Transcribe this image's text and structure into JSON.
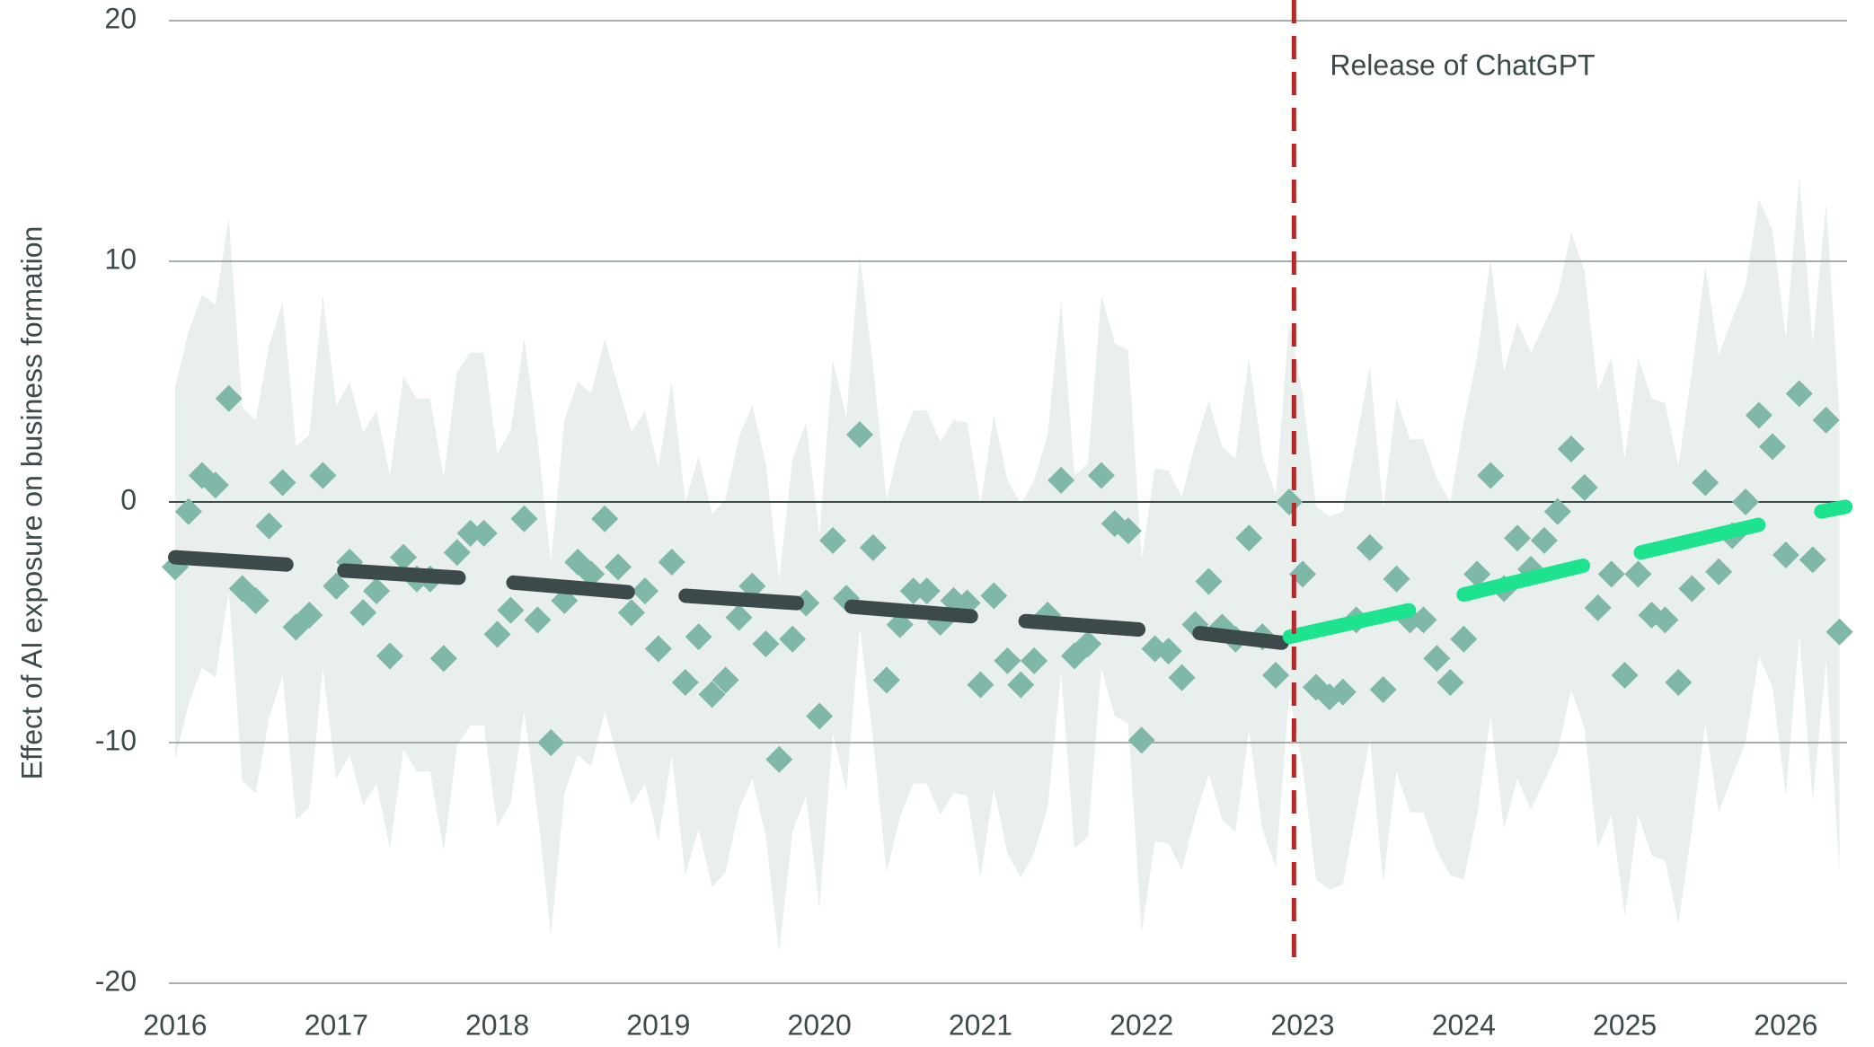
{
  "chart_data": {
    "type": "scatter",
    "y_label": "Effect of AI exposure on business formation",
    "xlim": [
      2016,
      2026.38
    ],
    "xticks": [
      2016,
      2017,
      2018,
      2019,
      2020,
      2021,
      2022,
      2023,
      2024,
      2025,
      2026
    ],
    "ylim": [
      -20,
      20
    ],
    "yticks": [
      -20,
      -10,
      0,
      10,
      20
    ],
    "grid": true,
    "x": [
      2016,
      2016.083,
      2016.167,
      2016.25,
      2016.333,
      2016.417,
      2016.5,
      2016.583,
      2016.667,
      2016.75,
      2016.833,
      2016.917,
      2017,
      2017.083,
      2017.167,
      2017.25,
      2017.333,
      2017.417,
      2017.5,
      2017.583,
      2017.667,
      2017.75,
      2017.833,
      2017.917,
      2018,
      2018.083,
      2018.167,
      2018.25,
      2018.333,
      2018.417,
      2018.5,
      2018.583,
      2018.667,
      2018.75,
      2018.833,
      2018.917,
      2019,
      2019.083,
      2019.167,
      2019.25,
      2019.333,
      2019.417,
      2019.5,
      2019.583,
      2019.667,
      2019.75,
      2019.833,
      2019.917,
      2020,
      2020.083,
      2020.167,
      2020.25,
      2020.333,
      2020.417,
      2020.5,
      2020.583,
      2020.667,
      2020.75,
      2020.833,
      2020.917,
      2021,
      2021.083,
      2021.167,
      2021.25,
      2021.333,
      2021.417,
      2021.5,
      2021.583,
      2021.667,
      2021.75,
      2021.833,
      2021.917,
      2022,
      2022.083,
      2022.167,
      2022.25,
      2022.333,
      2022.417,
      2022.5,
      2022.583,
      2022.667,
      2022.75,
      2022.833,
      2022.917,
      2023,
      2023.083,
      2023.167,
      2023.25,
      2023.333,
      2023.417,
      2023.5,
      2023.583,
      2023.667,
      2023.75,
      2023.833,
      2023.917,
      2024,
      2024.083,
      2024.167,
      2024.25,
      2024.333,
      2024.417,
      2024.5,
      2024.583,
      2024.667,
      2024.75,
      2024.833,
      2024.917,
      2025,
      2025.083,
      2025.167,
      2025.25,
      2025.333,
      2025.417,
      2025.5,
      2025.583,
      2025.667,
      2025.75,
      2025.833,
      2025.917,
      2026,
      2026.083,
      2026.167,
      2026.25,
      2026.333
    ],
    "points": {
      "color": "#7fb8a8",
      "values": [
        -2.7,
        -0.4,
        1.1,
        0.7,
        4.3,
        -3.6,
        -4.1,
        -1.0,
        0.8,
        -5.2,
        -4.7,
        1.1,
        -3.5,
        -2.5,
        -4.6,
        -3.7,
        -6.4,
        -2.3,
        -3.2,
        -3.2,
        -6.5,
        -2.1,
        -1.3,
        -1.3,
        -5.5,
        -4.5,
        -0.7,
        -4.9,
        -10.0,
        -4.1,
        -2.5,
        -3.0,
        -0.7,
        -2.7,
        -4.6,
        -3.7,
        -6.1,
        -2.5,
        -7.5,
        -5.6,
        -8.0,
        -7.4,
        -4.8,
        -3.5,
        -5.9,
        -10.7,
        -5.7,
        -4.2,
        -8.9,
        -1.6,
        -4.0,
        2.8,
        -1.9,
        -7.4,
        -5.1,
        -3.7,
        -3.7,
        -5.0,
        -4.1,
        -4.2,
        -7.6,
        -3.9,
        -6.6,
        -7.6,
        -6.6,
        -4.7,
        0.9,
        -6.4,
        -5.9,
        1.1,
        -0.9,
        -1.2,
        -9.9,
        -6.1,
        -6.2,
        -7.3,
        -5.1,
        -3.3,
        -5.2,
        -5.7,
        -1.5,
        -5.6,
        -7.2,
        0.0,
        -3.0,
        -7.7,
        -8.1,
        -7.9,
        -4.9,
        -1.9,
        -7.8,
        -3.2,
        -4.9,
        -4.9,
        -6.5,
        -7.5,
        -5.7,
        -3.0,
        1.1,
        -3.6,
        -1.5,
        -2.8,
        -1.6,
        -0.4,
        2.2,
        0.6,
        -4.4,
        -3.0,
        -7.2,
        -3.0,
        -4.7,
        -4.9,
        -7.5,
        -3.6,
        0.8,
        -2.9,
        -1.4,
        0.0,
        3.6,
        2.3,
        -2.2,
        4.5,
        -2.4,
        3.4,
        -5.4
      ]
    },
    "band": {
      "color": "#e9efed",
      "upper": [
        4.8,
        7.1,
        8.6,
        8.2,
        11.8,
        3.9,
        3.4,
        6.5,
        8.3,
        2.3,
        2.8,
        8.6,
        4.0,
        5.0,
        2.9,
        3.8,
        1.1,
        5.2,
        4.3,
        4.3,
        1.0,
        5.4,
        6.2,
        6.2,
        2.0,
        3.0,
        6.8,
        2.6,
        -2.5,
        3.4,
        5.0,
        4.5,
        6.8,
        4.8,
        2.9,
        3.8,
        1.4,
        5.0,
        0.0,
        1.9,
        -0.5,
        0.1,
        2.7,
        4.0,
        1.6,
        -3.2,
        1.8,
        3.3,
        -1.4,
        5.9,
        3.5,
        10.3,
        5.6,
        0.1,
        2.4,
        3.8,
        3.8,
        2.5,
        3.4,
        3.3,
        -0.1,
        3.6,
        0.9,
        -0.1,
        0.9,
        2.8,
        8.4,
        1.1,
        1.6,
        8.6,
        6.6,
        6.3,
        -2.4,
        1.4,
        1.3,
        0.2,
        2.4,
        4.2,
        2.3,
        1.8,
        6.0,
        1.9,
        0.3,
        7.5,
        4.5,
        -0.2,
        -0.6,
        -0.4,
        2.6,
        5.6,
        -0.3,
        4.3,
        2.6,
        2.6,
        1.0,
        0.0,
        3.3,
        6.0,
        10.1,
        5.4,
        7.5,
        6.2,
        7.4,
        8.6,
        11.2,
        9.6,
        4.6,
        6.0,
        1.8,
        6.0,
        4.3,
        4.1,
        1.5,
        5.4,
        9.8,
        6.1,
        7.6,
        9.0,
        12.6,
        11.3,
        6.8,
        13.5,
        6.6,
        12.4,
        3.6
      ],
      "lower": [
        -10.7,
        -8.4,
        -6.9,
        -7.3,
        -3.7,
        -11.6,
        -12.1,
        -9.0,
        -7.2,
        -13.2,
        -12.7,
        -6.9,
        -11.5,
        -10.5,
        -12.6,
        -11.7,
        -14.4,
        -10.3,
        -11.2,
        -11.2,
        -14.5,
        -10.1,
        -9.3,
        -9.3,
        -13.5,
        -12.5,
        -8.7,
        -12.9,
        -18.0,
        -12.1,
        -10.5,
        -11.0,
        -8.7,
        -10.7,
        -12.6,
        -11.7,
        -14.1,
        -10.5,
        -15.5,
        -13.6,
        -16.0,
        -15.4,
        -12.8,
        -11.5,
        -13.9,
        -18.7,
        -13.7,
        -12.2,
        -16.9,
        -9.6,
        -12.0,
        -5.2,
        -9.9,
        -15.4,
        -13.1,
        -11.7,
        -11.7,
        -13.0,
        -12.1,
        -12.2,
        -15.6,
        -11.9,
        -14.6,
        -15.6,
        -14.6,
        -12.7,
        -7.1,
        -14.4,
        -13.9,
        -6.9,
        -8.9,
        -9.2,
        -17.9,
        -14.1,
        -14.2,
        -15.3,
        -13.1,
        -11.3,
        -13.2,
        -13.7,
        -9.5,
        -13.6,
        -15.2,
        -8.0,
        -11.0,
        -15.7,
        -16.1,
        -15.9,
        -12.9,
        -9.9,
        -15.8,
        -11.2,
        -12.9,
        -12.9,
        -14.5,
        -15.5,
        -15.7,
        -13.0,
        -8.9,
        -13.6,
        -11.5,
        -12.8,
        -11.6,
        -10.4,
        -7.8,
        -9.4,
        -14.4,
        -13.0,
        -17.2,
        -13.0,
        -14.7,
        -14.9,
        -17.5,
        -13.6,
        -9.2,
        -12.9,
        -11.4,
        -10.0,
        -6.4,
        -7.7,
        -12.2,
        -5.5,
        -12.4,
        -6.6,
        -15.4
      ]
    },
    "trends": [
      {
        "color": "#3d4a4b",
        "x": [
          2016.0,
          2016.69
        ],
        "values": [
          -2.3,
          -2.6
        ]
      },
      {
        "color": "#3d4a4b",
        "x": [
          2017.05,
          2017.76
        ],
        "values": [
          -2.85,
          -3.15
        ]
      },
      {
        "color": "#3d4a4b",
        "x": [
          2018.1,
          2018.81
        ],
        "values": [
          -3.35,
          -3.75
        ]
      },
      {
        "color": "#3d4a4b",
        "x": [
          2019.17,
          2019.86
        ],
        "values": [
          -3.9,
          -4.2
        ]
      },
      {
        "color": "#3d4a4b",
        "x": [
          2020.2,
          2020.94
        ],
        "values": [
          -4.35,
          -4.75
        ]
      },
      {
        "color": "#3d4a4b",
        "x": [
          2021.28,
          2021.98
        ],
        "values": [
          -4.95,
          -5.3
        ]
      },
      {
        "color": "#3d4a4b",
        "x": [
          2022.36,
          2022.87
        ],
        "values": [
          -5.45,
          -5.85
        ]
      },
      {
        "color": "#1de38f",
        "x": [
          2022.92,
          2023.66
        ],
        "values": [
          -5.6,
          -4.5
        ]
      },
      {
        "color": "#1de38f",
        "x": [
          2024.0,
          2024.74
        ],
        "values": [
          -3.85,
          -2.65
        ]
      },
      {
        "color": "#1de38f",
        "x": [
          2025.1,
          2025.83
        ],
        "values": [
          -2.1,
          -0.95
        ]
      },
      {
        "color": "#1de38f",
        "x": [
          2026.22,
          2026.37
        ],
        "values": [
          -0.4,
          -0.2
        ]
      }
    ],
    "annotation": {
      "text": "Release of ChatGPT",
      "x": 2022.946,
      "color": "#b22a2a"
    }
  }
}
